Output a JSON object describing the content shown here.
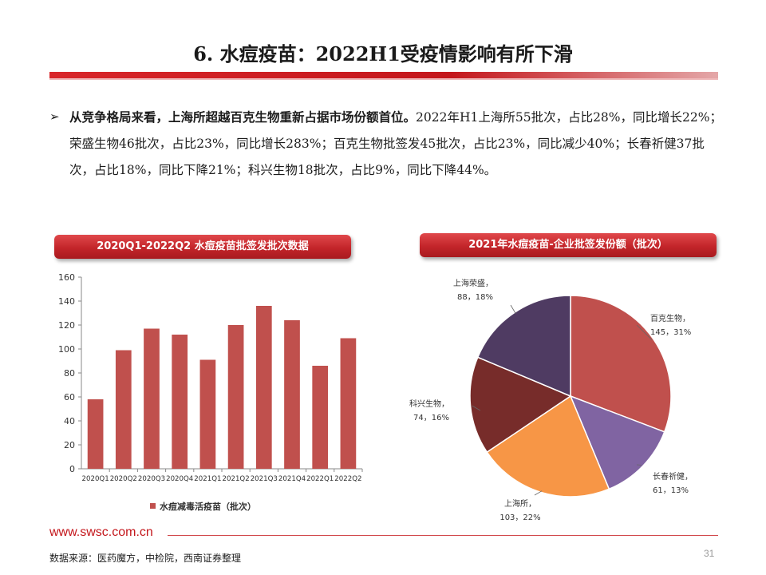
{
  "title": "6. 水痘疫苗：2022H1受疫情影响有所下滑",
  "bullet": {
    "marker": "➢",
    "bold": "从竞争格局来看，上海所超越百克生物重新占据市场份额首位。",
    "rest": "2022年H1上海所55批次，占比28%，同比增长22%；荣盛生物46批次，占比23%，同比增长283%；百克生物批签发45批次，占比23%，同比减少40%；长春祈健37批次，占比18%，同比下降21%；科兴生物18批次，占比9%，同比下降44%。"
  },
  "left_panel": {
    "banner": "2020Q1-2022Q2 水痘疫苗批签发批次数据"
  },
  "right_panel": {
    "banner": "2021年水痘疫苗-企业批签发份额（批次）"
  },
  "chart_data": [
    {
      "type": "bar",
      "categories": [
        "2020Q1",
        "2020Q2",
        "2020Q3",
        "2020Q4",
        "2021Q1",
        "2021Q2",
        "2021Q3",
        "2021Q4",
        "2022Q1",
        "2022Q2"
      ],
      "series": [
        {
          "name": "水痘减毒活疫苗（批次）",
          "values": [
            58,
            99,
            117,
            112,
            91,
            120,
            136,
            124,
            86,
            109
          ]
        }
      ],
      "ylim": [
        0,
        160
      ],
      "yticks": [
        0,
        20,
        40,
        60,
        80,
        100,
        120,
        140,
        160
      ],
      "color": "#c0504d",
      "legend": "bottom",
      "grid": false
    },
    {
      "type": "pie",
      "slices": [
        {
          "label": "百克生物",
          "value": 145,
          "percent": "31%",
          "color": "#c0504d"
        },
        {
          "label": "长春祈健",
          "value": 61,
          "percent": "13%",
          "color": "#8064a2"
        },
        {
          "label": "上海所",
          "value": 103,
          "percent": "22%",
          "color": "#f79646"
        },
        {
          "label": "科兴生物",
          "value": 74,
          "percent": "16%",
          "color": "#772c2a"
        },
        {
          "label": "上海荣盛",
          "value": 88,
          "percent": "18%",
          "color": "#4f3b62"
        }
      ]
    }
  ],
  "footer": {
    "url": "www.swsc.com.cn",
    "page": "31",
    "source": "数据来源：医药魔方，中检院，西南证券整理"
  }
}
